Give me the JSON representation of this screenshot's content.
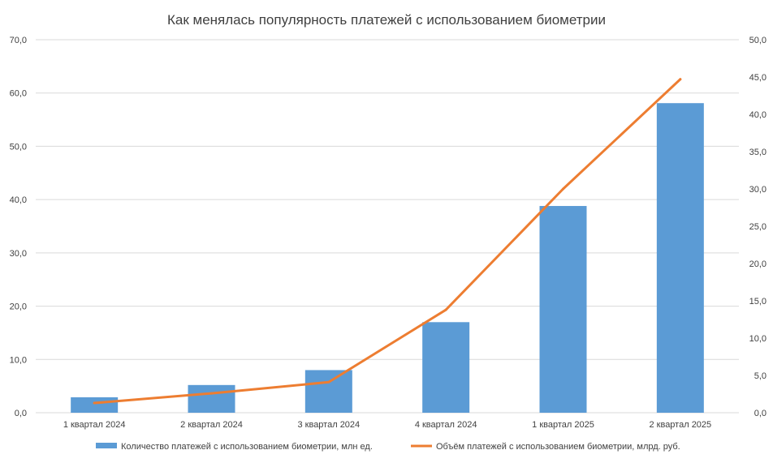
{
  "chart_data": {
    "type": "bar",
    "title": "Как менялась популярность платежей с использованием биометрии",
    "categories": [
      "1 квартал 2024",
      "2 квартал 2024",
      "3 квартал 2024",
      "4 квартал 2024",
      "1 квартал 2025",
      "2 квартал 2025"
    ],
    "series": [
      {
        "name": "Количество платежей с использованием биометрии, млн  ед.",
        "type": "bar",
        "axis": "left",
        "color": "#5b9bd5",
        "values": [
          2.9,
          5.2,
          8.0,
          17.0,
          38.8,
          58.1
        ]
      },
      {
        "name": "Объём платежей с использованием биометрии, млрд. руб.",
        "type": "line",
        "axis": "right",
        "color": "#ed7d31",
        "values": [
          1.3,
          2.6,
          4.1,
          13.8,
          30.0,
          44.7
        ]
      }
    ],
    "y_left": {
      "ylim": [
        0,
        70
      ],
      "ticks": [
        "0,0",
        "10,0",
        "20,0",
        "30,0",
        "40,0",
        "50,0",
        "60,0",
        "70,0"
      ]
    },
    "y_right": {
      "ylim": [
        0,
        50
      ],
      "ticks": [
        "0,0",
        "5,0",
        "10,0",
        "15,0",
        "20,0",
        "25,0",
        "30,0",
        "35,0",
        "40,0",
        "45,0",
        "50,0"
      ]
    },
    "grid": true,
    "legend": "bottom"
  }
}
